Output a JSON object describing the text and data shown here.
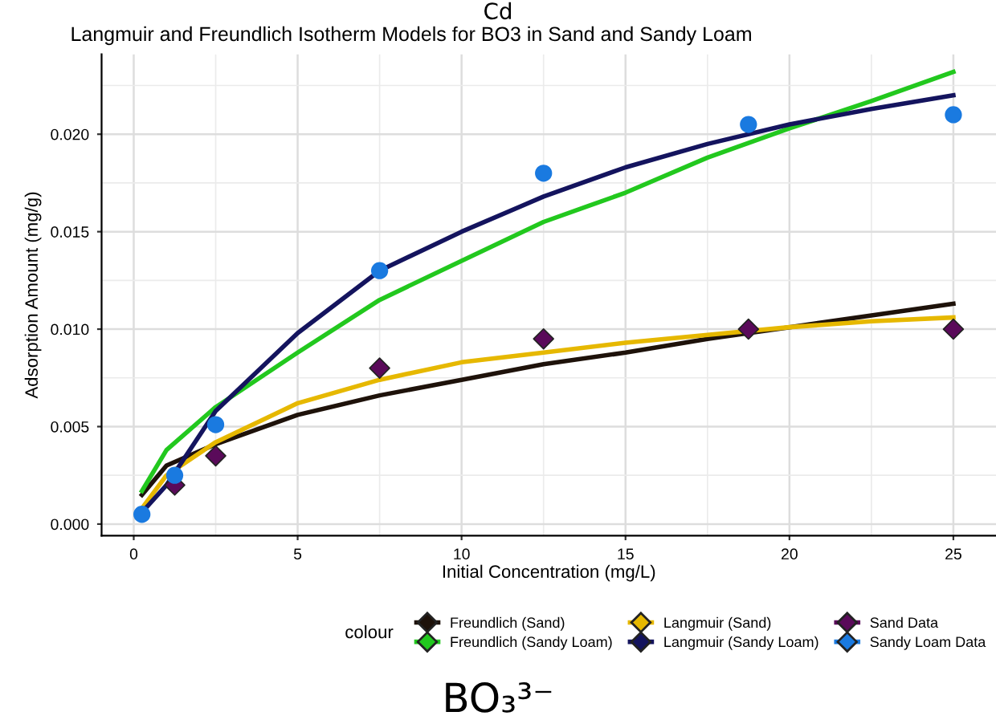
{
  "chart_data": {
    "type": "line",
    "title": "Langmuir and Freundlich Isotherm Models for BO3 in Sand and Sandy Loam",
    "xlabel": "Initial Concentration (mg/L)",
    "ylabel": "Adsorption Amount (mg/g)",
    "legend_title": "colour",
    "annotations": [
      "Cd",
      "BO₃³⁻"
    ],
    "xlim": [
      -0.98,
      26.3
    ],
    "xticks": [
      0,
      5,
      10,
      15,
      20,
      25
    ],
    "ylim": [
      -0.0006,
      0.0241
    ],
    "yticks": [
      {
        "value": 0,
        "label": "0.000"
      },
      {
        "value": 0.005,
        "label": "0.005"
      },
      {
        "value": 0.01,
        "label": "0.010"
      },
      {
        "value": 0.015,
        "label": "0.015"
      },
      {
        "value": 0.02,
        "label": "0.020"
      }
    ],
    "grid": true,
    "legend": "bottom",
    "marker": "none",
    "line_style": "solid",
    "series": [
      {
        "name": "Freundlich (Sand)",
        "color": "#1e120a",
        "x": [
          0.25,
          1,
          2.5,
          5,
          7.5,
          10,
          12.5,
          15,
          17.5,
          20,
          22.5,
          25
        ],
        "values": [
          0.0015,
          0.003,
          0.0041,
          0.0056,
          0.0066,
          0.0074,
          0.0082,
          0.0088,
          0.0095,
          0.0101,
          0.0107,
          0.0113
        ]
      },
      {
        "name": "Freundlich (Sandy Loam)",
        "type": "line",
        "color": "#22c81e",
        "x": [
          0.25,
          1,
          2.5,
          5,
          7.5,
          10,
          12.5,
          15,
          17.5,
          20,
          22.5,
          25
        ],
        "values": [
          0.0017,
          0.0038,
          0.006,
          0.0088,
          0.0115,
          0.0135,
          0.0155,
          0.017,
          0.0188,
          0.0203,
          0.0217,
          0.0232
        ]
      },
      {
        "name": "Langmuir (Sand)",
        "type": "line",
        "color": "#e6b800",
        "x": [
          0.25,
          1,
          2.5,
          5,
          7.5,
          10,
          12.5,
          15,
          17.5,
          20,
          22.5,
          25
        ],
        "values": [
          0.0008,
          0.0025,
          0.0042,
          0.0062,
          0.0074,
          0.0083,
          0.0088,
          0.0093,
          0.0097,
          0.0101,
          0.0104,
          0.0106
        ]
      },
      {
        "name": "Langmuir (Sandy Loam)",
        "type": "line",
        "color": "#14145e",
        "x": [
          0.25,
          1,
          2.5,
          5,
          7.5,
          10,
          12.5,
          15,
          17.5,
          20,
          22.5,
          25
        ],
        "values": [
          0.0006,
          0.002,
          0.0058,
          0.0098,
          0.013,
          0.015,
          0.0168,
          0.0183,
          0.0195,
          0.0205,
          0.0213,
          0.022
        ]
      },
      {
        "name": "Sand Data",
        "type": "scatter",
        "marker": "diamond",
        "color": "#5a0a5a",
        "x": [
          1.25,
          2.5,
          7.5,
          12.5,
          18.75,
          25
        ],
        "values": [
          0.002,
          0.0035,
          0.008,
          0.0095,
          0.01,
          0.01
        ]
      },
      {
        "name": "Sandy Loam Data",
        "type": "scatter",
        "marker": "circle",
        "color": "#1a7ae0",
        "x": [
          0.25,
          1.25,
          2.5,
          7.5,
          12.5,
          18.75,
          25
        ],
        "values": [
          0.0005,
          0.0025,
          0.0051,
          0.013,
          0.018,
          0.0205,
          0.021
        ]
      }
    ]
  }
}
